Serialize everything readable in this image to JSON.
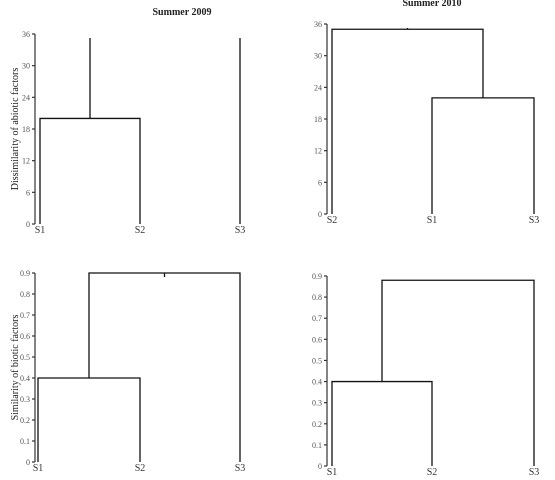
{
  "chart_data": [
    {
      "type": "dendrogram",
      "title": "Summer 2009",
      "ylabel": "Dissimilarity of abiotic factors",
      "ylim": [
        0,
        36
      ],
      "yticks": [
        "0",
        "6",
        "12",
        "18",
        "24",
        "30",
        "36"
      ],
      "leaves": [
        "S1",
        "S2",
        "S3"
      ],
      "merges": [
        {
          "join": [
            "S1",
            "S2"
          ],
          "height": 20
        }
      ]
    },
    {
      "type": "dendrogram",
      "title": "Summer 2010",
      "ylabel": "",
      "ylim": [
        0,
        36
      ],
      "yticks": [
        "0",
        "6",
        "12",
        "18",
        "24",
        "30",
        "36"
      ],
      "leaves": [
        "S2",
        "S1",
        "S3"
      ],
      "merges": [
        {
          "join": [
            "S1",
            "S3"
          ],
          "height": 22
        },
        {
          "join": [
            "S2",
            "S1-S3"
          ],
          "height": 35
        }
      ]
    },
    {
      "type": "dendrogram",
      "title": "",
      "ylabel": "Similarity of biotic factors",
      "ylim": [
        0,
        0.9
      ],
      "yticks": [
        "0",
        "0.1",
        "0.2",
        "0.3",
        "0.4",
        "0.5",
        "0.6",
        "0.7",
        "0.8",
        "0.9"
      ],
      "leaves": [
        "S1",
        "S2",
        "S3"
      ],
      "merges": [
        {
          "join": [
            "S1",
            "S2"
          ],
          "height": 0.4
        },
        {
          "join": [
            "S1-S2",
            "S3"
          ],
          "height": 0.9
        }
      ]
    },
    {
      "type": "dendrogram",
      "title": "",
      "ylabel": "",
      "ylim": [
        0,
        0.9
      ],
      "yticks": [
        "0",
        "0.1",
        "0.2",
        "0.3",
        "0.4",
        "0.5",
        "0.6",
        "0.7",
        "0.8",
        "0.9"
      ],
      "leaves": [
        "S1",
        "S2",
        "S3"
      ],
      "merges": [
        {
          "join": [
            "S1",
            "S2"
          ],
          "height": 0.4
        },
        {
          "join": [
            "S1-S2",
            "S3"
          ],
          "height": 0.88
        }
      ]
    }
  ]
}
